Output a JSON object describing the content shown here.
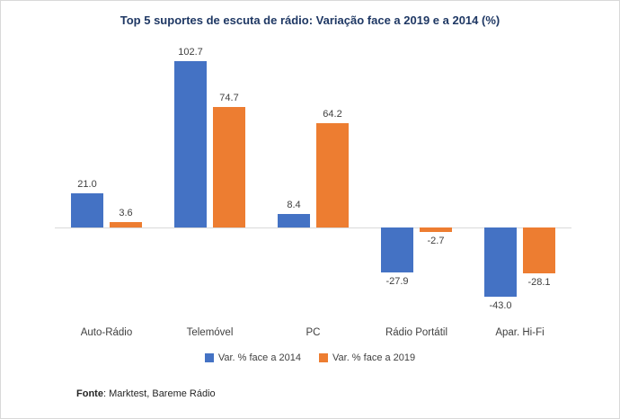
{
  "chart_data": {
    "type": "bar",
    "title": "Top 5 suportes de escuta de rádio: Variação face a 2019 e a 2014 (%)",
    "categories": [
      "Auto-Rádio",
      "Telemóvel",
      "PC",
      "Rádio Portátil",
      "Apar. Hi-Fi"
    ],
    "series": [
      {
        "name": "Var. % face a 2014",
        "color": "#4472C4",
        "values": [
          21.0,
          102.7,
          8.4,
          -27.9,
          -43.0
        ]
      },
      {
        "name": "Var. % face a 2019",
        "color": "#ED7D31",
        "values": [
          3.6,
          74.7,
          64.2,
          -2.7,
          -28.1
        ]
      }
    ],
    "ylim": [
      -55,
      115
    ],
    "grid": false,
    "legend_position": "bottom",
    "value_labels": true,
    "xlabel": "",
    "ylabel": ""
  },
  "footer": {
    "source_label": "Fonte",
    "source_text": ": Marktest, Bareme Rádio"
  }
}
